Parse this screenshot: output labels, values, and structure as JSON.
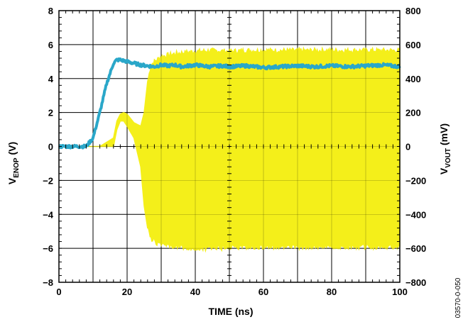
{
  "chart_data": {
    "type": "line",
    "xlabel": "TIME (ns)",
    "xlim": [
      0,
      100
    ],
    "x_ticks": [
      "0",
      "20",
      "40",
      "60",
      "80",
      "100"
    ],
    "y_left": {
      "label_main": "V",
      "label_sub": "ENOP",
      "label_unit": " (V)",
      "lim": [
        -8,
        8
      ],
      "ticks": [
        "8",
        "6",
        "4",
        "2",
        "0",
        "−2",
        "−4",
        "−6",
        "−8"
      ]
    },
    "y_right": {
      "label_main": "V",
      "label_sub": "VOUT",
      "label_unit": " (mV)",
      "lim": [
        -800,
        800
      ],
      "ticks": [
        "800",
        "600",
        "400",
        "200",
        "0",
        "−200",
        "−400",
        "−600",
        "−800"
      ]
    },
    "grid": true,
    "series": [
      {
        "axis": "left",
        "color": "#2aa7c9",
        "style": "noisy-line",
        "x": [
          0,
          8,
          10,
          12,
          14,
          16,
          17,
          18,
          20,
          22,
          24,
          26,
          28,
          30,
          32,
          34,
          36,
          40,
          44,
          48,
          50,
          55,
          60,
          65,
          70,
          75,
          80,
          85,
          90,
          95,
          100
        ],
        "y": [
          0,
          0,
          0.5,
          2.0,
          3.7,
          4.9,
          5.1,
          5.1,
          5.0,
          4.9,
          4.8,
          4.75,
          4.7,
          4.8,
          4.75,
          4.8,
          4.7,
          4.8,
          4.7,
          4.75,
          4.7,
          4.75,
          4.65,
          4.7,
          4.75,
          4.7,
          4.75,
          4.7,
          4.75,
          4.8,
          4.7
        ]
      },
      {
        "axis": "right",
        "color": "#f4ef1a",
        "style": "envelope",
        "x": [
          0,
          12,
          16,
          17,
          18,
          19,
          20,
          22,
          24,
          25,
          26,
          27,
          28,
          30,
          35,
          40,
          45,
          50,
          55,
          60,
          70,
          80,
          90,
          100
        ],
        "upper": [
          0,
          0,
          50,
          150,
          190,
          200,
          190,
          140,
          120,
          200,
          380,
          480,
          500,
          530,
          550,
          560,
          565,
          560,
          565,
          565,
          565,
          565,
          565,
          565
        ],
        "lower": [
          0,
          0,
          0,
          100,
          150,
          150,
          120,
          50,
          -120,
          -350,
          -480,
          -540,
          -560,
          -580,
          -590,
          -600,
          -600,
          -595,
          -590,
          -590,
          -590,
          -590,
          -590,
          -590
        ]
      }
    ],
    "figure_code": "03570-0-050"
  }
}
